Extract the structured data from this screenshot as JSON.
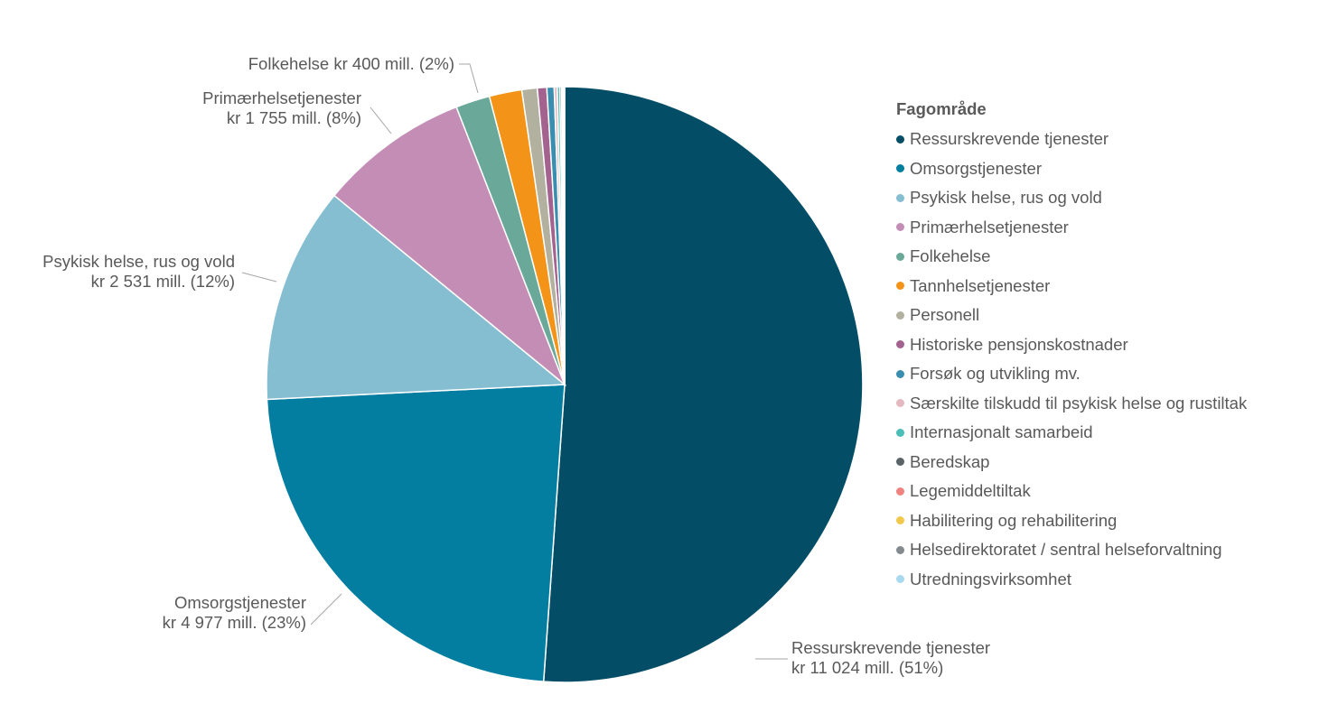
{
  "chart_data": {
    "type": "pie",
    "legend_title": "Fagområde",
    "legend_position": "right",
    "slices": [
      {
        "name": "Ressurskrevende tjenester",
        "value": 11024,
        "color": "#034E66",
        "label": [
          "Ressurskrevende tjenester",
          "kr 11 024 mill. (51%)"
        ]
      },
      {
        "name": "Omsorgstjenester",
        "value": 4977,
        "color": "#037EA1",
        "label": [
          "Omsorgstjenester",
          "kr 4 977 mill. (23%)"
        ]
      },
      {
        "name": "Psykisk helse, rus og vold",
        "value": 2531,
        "color": "#85BDD1",
        "label": [
          "Psykisk helse, rus og vold",
          "kr 2 531 mill. (12%)"
        ]
      },
      {
        "name": "Primærhelsetjenester",
        "value": 1755,
        "color": "#C48DB6",
        "label": [
          "Primærhelsetjenester",
          "kr 1 755 mill. (8%)"
        ]
      },
      {
        "name": "Folkehelse",
        "value": 400,
        "color": "#6AA99A",
        "label": [
          "Folkehelse kr 400 mill. (2%)"
        ]
      },
      {
        "name": "Tannhelsetjenester",
        "value": 380,
        "color": "#F39418"
      },
      {
        "name": "Personell",
        "value": 180,
        "color": "#B2B09F"
      },
      {
        "name": "Historiske pensjonskostnader",
        "value": 110,
        "color": "#A4628F"
      },
      {
        "name": "Forsøk og utvikling mv.",
        "value": 85,
        "color": "#3A8FB0"
      },
      {
        "name": "Særskilte tilskudd til psykisk helse og rustiltak",
        "value": 35,
        "color": "#E3B8BE"
      },
      {
        "name": "Internasjonalt samarbeid",
        "value": 30,
        "color": "#4BBFB7"
      },
      {
        "name": "Beredskap",
        "value": 20,
        "color": "#5A6368"
      },
      {
        "name": "Legemiddeltiltak",
        "value": 12,
        "color": "#F08380"
      },
      {
        "name": "Habilitering og rehabilitering",
        "value": 10,
        "color": "#F1C84B"
      },
      {
        "name": "Helsedirektoratet / sentral helseforvaltning",
        "value": 8,
        "color": "#828A8F"
      },
      {
        "name": "Utredningsvirksomhet",
        "value": 6,
        "color": "#A9D9EE"
      }
    ]
  }
}
